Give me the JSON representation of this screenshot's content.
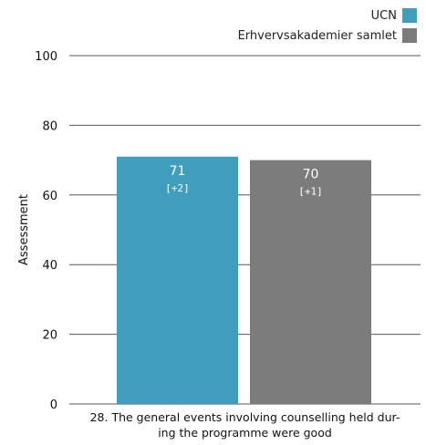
{
  "chart_data": {
    "type": "bar",
    "ylabel": "Assessment",
    "ylim": [
      0,
      100
    ],
    "yticks": [
      0,
      20,
      40,
      60,
      80,
      100
    ],
    "grid": true,
    "legend_position": "top-right",
    "category": "28. The general events involving counselling held during the programme were good",
    "category_lines": [
      "28. The general events involving counselling held dur-",
      "ing the programme were good"
    ],
    "series": [
      {
        "name": "UCN",
        "value": 71,
        "delta": "[+2]",
        "color": "#3e9ebc"
      },
      {
        "name": "Erhvervsakademier samlet",
        "value": 70,
        "delta": "[+1]",
        "color": "#7c7c7c"
      }
    ]
  }
}
